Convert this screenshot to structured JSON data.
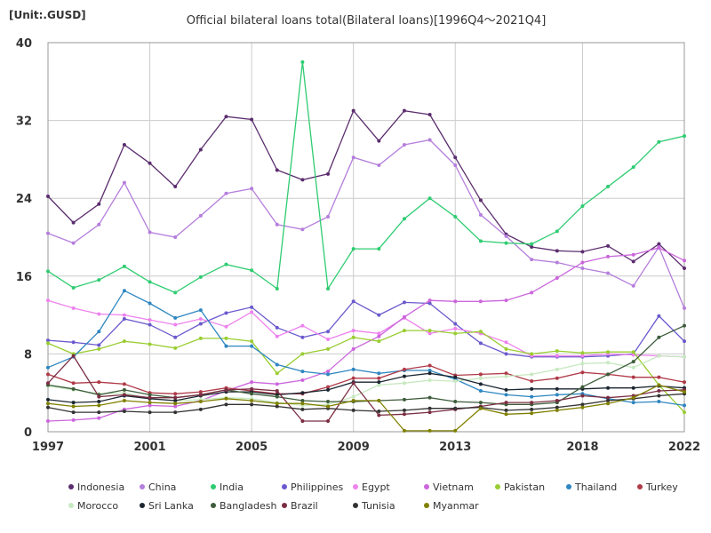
{
  "chart_data": {
    "type": "line",
    "title": "Official bilateral loans total(Bilateral loans)[1996Q4～2021Q4]",
    "unit_label": "[Unit:.GUSD]",
    "xlabel": "",
    "ylabel": "",
    "xlim": [
      1997,
      2022
    ],
    "ylim": [
      0,
      40
    ],
    "x_ticks": [
      1997,
      2001,
      2005,
      2009,
      2013,
      2018,
      2022
    ],
    "y_ticks": [
      0,
      8,
      16,
      24,
      32,
      40
    ],
    "grid": true,
    "legend_position": "bottom",
    "x": [
      1997,
      1998,
      1999,
      2000,
      2001,
      2002,
      2003,
      2004,
      2005,
      2006,
      2007,
      2008,
      2009,
      2010,
      2011,
      2012,
      2013,
      2014,
      2015,
      2016,
      2017,
      2018,
      2019,
      2020,
      2021,
      2022
    ],
    "series": [
      {
        "name": "Indonesia",
        "color": "#5b2d6e",
        "values": [
          24.2,
          21.5,
          23.4,
          29.5,
          27.6,
          25.2,
          29.0,
          32.4,
          32.1,
          26.9,
          25.9,
          26.5,
          33.0,
          29.9,
          33.0,
          32.6,
          28.2,
          23.8,
          20.3,
          19.0,
          18.6,
          18.5,
          19.1,
          17.5,
          19.3,
          16.8
        ]
      },
      {
        "name": "China",
        "color": "#b57edc",
        "values": [
          20.4,
          19.4,
          21.3,
          25.6,
          20.5,
          20.0,
          22.2,
          24.5,
          25.0,
          21.3,
          20.8,
          22.1,
          28.2,
          27.4,
          29.5,
          30.0,
          27.4,
          22.3,
          20.1,
          17.7,
          17.4,
          16.8,
          16.3,
          15.0,
          19.0,
          12.7
        ]
      },
      {
        "name": "India",
        "color": "#2ecc71",
        "values": [
          16.5,
          14.8,
          15.6,
          17.0,
          15.4,
          14.3,
          15.9,
          17.2,
          16.6,
          14.7,
          38.0,
          14.7,
          18.8,
          18.8,
          21.9,
          24.0,
          22.1,
          19.6,
          19.4,
          19.3,
          20.6,
          23.2,
          25.2,
          27.2,
          29.8,
          30.4
        ]
      },
      {
        "name": "Philippines",
        "color": "#6a5acd",
        "values": [
          9.4,
          9.2,
          8.9,
          11.6,
          11.0,
          9.7,
          11.1,
          12.2,
          12.8,
          10.7,
          9.7,
          10.3,
          13.4,
          12.0,
          13.3,
          13.2,
          11.1,
          9.1,
          8.0,
          7.7,
          7.7,
          7.7,
          7.8,
          8.0,
          11.9,
          9.3
        ]
      },
      {
        "name": "Egypt",
        "color": "#ee82ee",
        "values": [
          13.5,
          12.7,
          12.1,
          12.0,
          11.5,
          11.0,
          11.6,
          10.8,
          12.3,
          9.8,
          10.9,
          9.5,
          10.4,
          10.1,
          11.7,
          10.1,
          10.6,
          10.1,
          9.2,
          7.8,
          7.8,
          7.8,
          8.0,
          7.9,
          7.8,
          7.7
        ]
      },
      {
        "name": "Vietnam",
        "color": "#cc66dd",
        "values": [
          1.1,
          1.2,
          1.4,
          2.3,
          2.7,
          2.6,
          3.2,
          4.2,
          5.1,
          4.9,
          5.3,
          6.2,
          8.5,
          9.8,
          11.8,
          13.5,
          13.4,
          13.4,
          13.5,
          14.3,
          15.8,
          17.4,
          18.0,
          18.2,
          18.9,
          17.6
        ]
      },
      {
        "name": "Pakistan",
        "color": "#9acd32",
        "values": [
          9.1,
          8.0,
          8.5,
          9.3,
          9.0,
          8.6,
          9.6,
          9.6,
          9.3,
          6.0,
          8.0,
          8.5,
          9.7,
          9.3,
          10.4,
          10.4,
          10.1,
          10.3,
          8.5,
          8.0,
          8.3,
          8.1,
          8.2,
          8.2,
          4.8,
          2.0
        ]
      },
      {
        "name": "Thailand",
        "color": "#2e86c1",
        "values": [
          6.6,
          7.7,
          10.3,
          14.5,
          13.2,
          11.7,
          12.5,
          8.8,
          8.8,
          6.9,
          6.2,
          5.9,
          6.4,
          6.0,
          6.3,
          6.3,
          5.4,
          4.2,
          3.8,
          3.6,
          3.8,
          3.9,
          3.4,
          3.0,
          3.1,
          2.7
        ]
      },
      {
        "name": "Turkey",
        "color": "#b03a48",
        "values": [
          5.9,
          5.0,
          5.1,
          4.9,
          4.0,
          3.9,
          4.1,
          4.5,
          4.2,
          3.9,
          3.9,
          4.6,
          5.5,
          5.5,
          6.4,
          6.8,
          5.8,
          5.9,
          6.0,
          5.2,
          5.5,
          6.1,
          5.9,
          5.6,
          5.6,
          5.1
        ]
      },
      {
        "name": "Morocco",
        "color": "#c7e9c0",
        "values": [
          4.7,
          4.3,
          3.9,
          4.0,
          3.4,
          3.2,
          3.3,
          3.5,
          3.4,
          3.0,
          2.7,
          2.8,
          3.6,
          4.8,
          5.0,
          5.3,
          5.2,
          5.5,
          5.7,
          5.9,
          6.4,
          7.0,
          7.1,
          6.6,
          7.8,
          7.7
        ]
      },
      {
        "name": "Sri Lanka",
        "color": "#1b2631",
        "values": [
          3.3,
          3.0,
          3.1,
          3.7,
          3.4,
          3.2,
          3.7,
          4.1,
          4.1,
          3.8,
          4.0,
          4.3,
          5.1,
          5.1,
          5.7,
          6.0,
          5.6,
          4.9,
          4.3,
          4.4,
          4.4,
          4.4,
          4.5,
          4.5,
          4.7,
          4.5
        ]
      },
      {
        "name": "Bangladesh",
        "color": "#3d5c3a",
        "values": [
          4.8,
          4.4,
          3.8,
          4.3,
          3.8,
          3.5,
          3.8,
          4.3,
          3.9,
          3.6,
          3.2,
          3.1,
          3.1,
          3.2,
          3.3,
          3.5,
          3.1,
          3.0,
          2.8,
          2.8,
          3.0,
          4.6,
          5.9,
          7.2,
          9.7,
          10.9
        ]
      },
      {
        "name": "Brazil",
        "color": "#7b2d43",
        "values": [
          5.0,
          7.8,
          3.6,
          3.8,
          3.5,
          3.5,
          3.8,
          4.3,
          4.4,
          4.2,
          1.1,
          1.1,
          5.0,
          1.7,
          1.8,
          2.0,
          2.3,
          2.6,
          3.0,
          3.0,
          3.2,
          3.7,
          3.5,
          3.7,
          4.2,
          4.3
        ]
      },
      {
        "name": "Tunisia",
        "color": "#333333",
        "values": [
          2.5,
          2.0,
          2.0,
          2.1,
          2.0,
          2.0,
          2.3,
          2.8,
          2.8,
          2.6,
          2.3,
          2.4,
          2.2,
          2.1,
          2.2,
          2.4,
          2.4,
          2.5,
          2.2,
          2.3,
          2.5,
          2.8,
          3.2,
          3.4,
          3.7,
          3.9
        ]
      },
      {
        "name": "Myanmar",
        "color": "#808000",
        "values": [
          2.9,
          2.6,
          2.7,
          3.2,
          3.0,
          2.9,
          3.1,
          3.4,
          3.2,
          2.9,
          2.9,
          2.6,
          3.2,
          3.2,
          0.1,
          0.1,
          0.1,
          2.4,
          1.8,
          1.9,
          2.2,
          2.5,
          2.9,
          3.5,
          4.8,
          4.1
        ]
      }
    ]
  }
}
